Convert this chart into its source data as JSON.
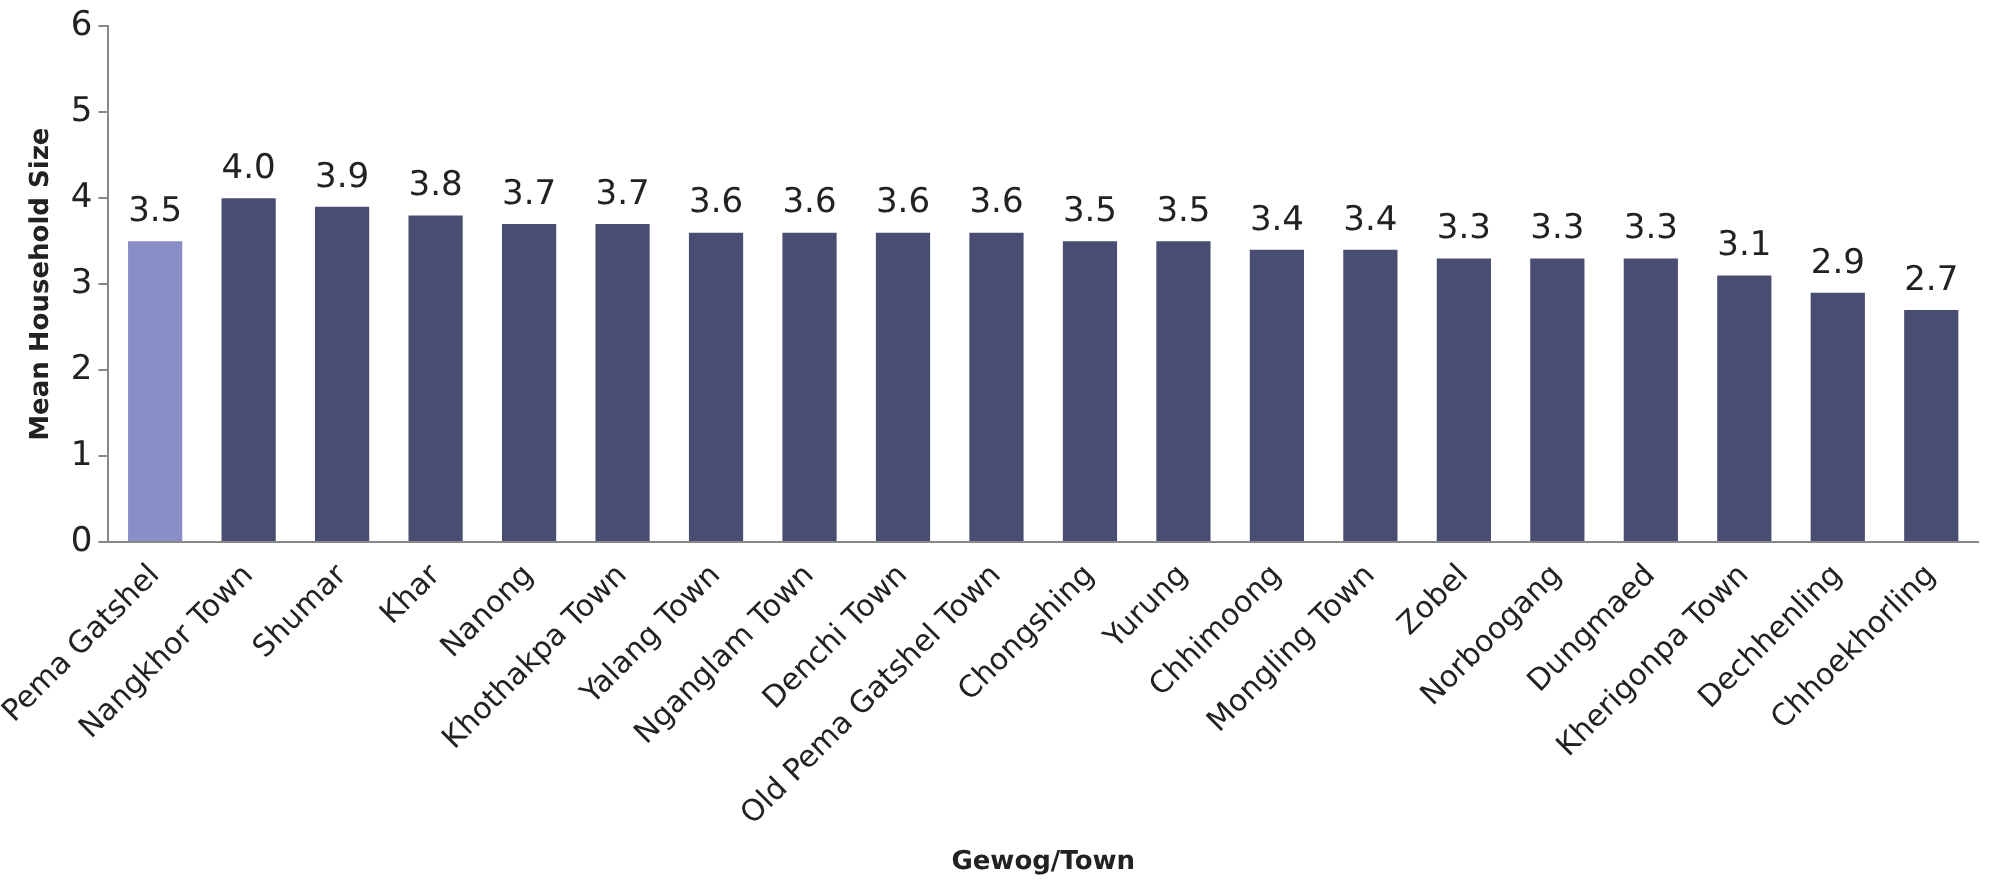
{
  "chart_data": {
    "type": "bar",
    "xlabel": "Gewog/Town",
    "ylabel": "Mean Household Size",
    "categories": [
      "Pema Gatshel",
      "Nangkhor Town",
      "Shumar",
      "Khar",
      "Nanong",
      "Khothakpa Town",
      "Yalang Town",
      "Nganglam Town",
      "Denchi Town",
      "Old Pema Gatshel Town",
      "Chongshing",
      "Yurung",
      "Chhimoong",
      "Mongling Town",
      "Zobel",
      "Norboogang",
      "Dungmaed",
      "Kherigonpa Town",
      "Dechhenling",
      "Chhoekhorling"
    ],
    "values": [
      3.5,
      4.0,
      3.9,
      3.8,
      3.7,
      3.7,
      3.6,
      3.6,
      3.6,
      3.6,
      3.5,
      3.5,
      3.4,
      3.4,
      3.3,
      3.3,
      3.3,
      3.1,
      2.9,
      2.7
    ],
    "value_labels": [
      "3.5",
      "4.0",
      "3.9",
      "3.8",
      "3.7",
      "3.7",
      "3.6",
      "3.6",
      "3.6",
      "3.6",
      "3.5",
      "3.5",
      "3.4",
      "3.4",
      "3.3",
      "3.3",
      "3.3",
      "3.1",
      "2.9",
      "2.7"
    ],
    "colors": [
      "#8a8ec6",
      "#4a4d72",
      "#4a4d72",
      "#4a4d72",
      "#4a4d72",
      "#4a4d72",
      "#4a4d72",
      "#4a4d72",
      "#4a4d72",
      "#4a4d72",
      "#4a4d72",
      "#4a4d72",
      "#4a4d72",
      "#4a4d72",
      "#4a4d72",
      "#4a4d72",
      "#4a4d72",
      "#4a4d72",
      "#4a4d72",
      "#4a4d72"
    ],
    "ylim": [
      0,
      6
    ],
    "yticks": [
      0,
      1,
      2,
      3,
      4,
      5,
      6
    ],
    "grid": false,
    "legend": false
  }
}
